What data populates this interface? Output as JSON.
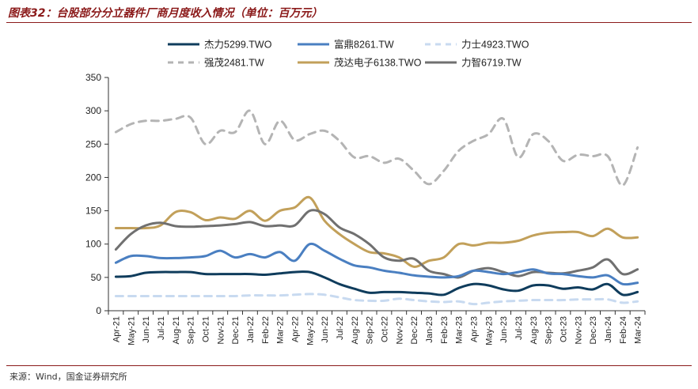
{
  "title": "图表32：台股部分分立器件厂商月度收入情况（单位：百万元）",
  "source": "来源：Wind，国金证券研究所",
  "chart_data": {
    "type": "line",
    "title": "台股部分分立器件厂商月度收入情况（单位：百万元）",
    "xlabel": "",
    "ylabel": "",
    "ylim": [
      0,
      350
    ],
    "yticks": [
      "0",
      "50",
      "100",
      "150",
      "200",
      "250",
      "300",
      "350"
    ],
    "grid": false,
    "legend_position": "top",
    "categories": [
      "Apr-21",
      "May-21",
      "Jun-21",
      "Jul-21",
      "Aug-21",
      "Sep-21",
      "Oct-21",
      "Nov-21",
      "Dec-21",
      "Jan-22",
      "Feb-22",
      "Mar-22",
      "Apr-22",
      "May-22",
      "Jun-22",
      "Jul-22",
      "Aug-22",
      "Sep-22",
      "Oct-22",
      "Nov-22",
      "Dec-22",
      "Jan-23",
      "Feb-23",
      "Mar-23",
      "Apr-23",
      "May-23",
      "Jun-23",
      "Jul-23",
      "Aug-23",
      "Sep-23",
      "Oct-23",
      "Nov-23",
      "Dec-23",
      "Jan-24",
      "Feb-24",
      "Mar-24"
    ],
    "series": [
      {
        "name": "杰力5299.TWO",
        "color": "#0f3c5c",
        "dash": "solid",
        "values": [
          51,
          52,
          57,
          58,
          58,
          58,
          55,
          55,
          55,
          55,
          54,
          56,
          58,
          58,
          50,
          40,
          33,
          27,
          28,
          28,
          27,
          26,
          24,
          34,
          40,
          38,
          32,
          30,
          38,
          38,
          33,
          35,
          32,
          40,
          24,
          28
        ]
      },
      {
        "name": "富鼎8261.TW",
        "color": "#4a7fc1",
        "dash": "solid",
        "values": [
          72,
          82,
          82,
          79,
          79,
          80,
          82,
          90,
          80,
          85,
          80,
          88,
          75,
          100,
          90,
          78,
          68,
          65,
          60,
          57,
          53,
          51,
          50,
          52,
          60,
          58,
          55,
          58,
          62,
          56,
          55,
          52,
          50,
          53,
          40,
          42
        ]
      },
      {
        "name": "力士4923.TWO",
        "color": "#c8daf0",
        "dash": "dashed",
        "values": [
          22,
          22,
          22,
          22,
          22,
          22,
          22,
          22,
          22,
          23,
          23,
          23,
          24,
          25,
          24,
          20,
          16,
          15,
          15,
          18,
          16,
          14,
          13,
          14,
          10,
          12,
          14,
          15,
          16,
          16,
          16,
          17,
          17,
          17,
          12,
          14
        ]
      },
      {
        "name": "强茂2481.TW",
        "color": "#b4b4b4",
        "dash": "dashed",
        "values": [
          268,
          280,
          285,
          285,
          288,
          290,
          250,
          270,
          268,
          300,
          250,
          285,
          256,
          265,
          270,
          255,
          230,
          232,
          222,
          228,
          210,
          190,
          210,
          240,
          255,
          265,
          288,
          230,
          265,
          255,
          225,
          234,
          232,
          232,
          188,
          245
        ]
      },
      {
        "name": "茂达电子6138.TWO",
        "color": "#c2a05a",
        "dash": "solid",
        "values": [
          124,
          124,
          124,
          128,
          148,
          148,
          136,
          140,
          138,
          150,
          135,
          150,
          155,
          170,
          135,
          115,
          100,
          88,
          86,
          80,
          66,
          75,
          80,
          100,
          98,
          102,
          102,
          105,
          113,
          117,
          118,
          118,
          112,
          123,
          110,
          110
        ]
      },
      {
        "name": "力智6719.TW",
        "color": "#707070",
        "dash": "solid",
        "values": [
          92,
          115,
          128,
          132,
          127,
          126,
          127,
          128,
          130,
          133,
          127,
          128,
          128,
          150,
          145,
          125,
          115,
          100,
          80,
          75,
          78,
          60,
          55,
          50,
          60,
          64,
          58,
          52,
          58,
          57,
          56,
          60,
          65,
          77,
          55,
          62
        ]
      }
    ]
  }
}
